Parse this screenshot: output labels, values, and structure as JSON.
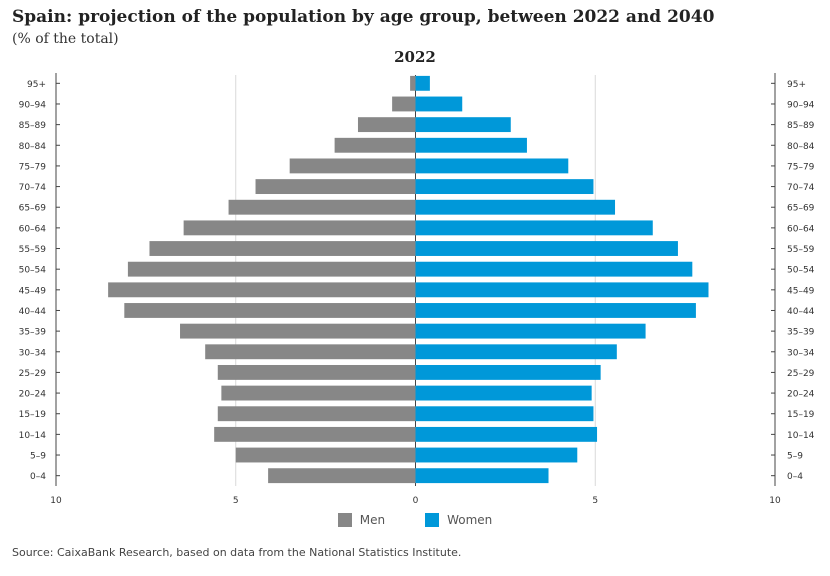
{
  "title": "Spain: projection of the population by age group, between 2022 and 2040",
  "subtitle": "(% of the total)",
  "source": "Source: CaixaBank Research, based on data from the National Statistics Institute.",
  "colors": {
    "men": "#878787",
    "women": "#0098d9",
    "grid": "#d9d9d9",
    "axis": "#444444"
  },
  "chart_data": {
    "type": "bar",
    "title": "2022",
    "orientation": "horizontal-pyramid",
    "categories": [
      "0-4",
      "5-9",
      "10-14",
      "15-19",
      "20-24",
      "25-29",
      "30-34",
      "35-39",
      "40-44",
      "45-49",
      "50-54",
      "55-59",
      "60-64",
      "65-69",
      "70-74",
      "75-79",
      "80-84",
      "85-89",
      "90-94",
      "95+"
    ],
    "category_labels": [
      "0–4",
      "5–9",
      "10–14",
      "15–19",
      "20–24",
      "25–29",
      "30–34",
      "35–39",
      "40–44",
      "45–49",
      "50–54",
      "55–59",
      "60–64",
      "65–69",
      "70–74",
      "75–79",
      "80–84",
      "85–89",
      "90–94",
      "95+"
    ],
    "series": [
      {
        "name": "Men",
        "side": "left",
        "values": [
          4.1,
          5.0,
          5.6,
          5.5,
          5.4,
          5.5,
          5.85,
          6.55,
          8.1,
          8.55,
          8.0,
          7.4,
          6.45,
          5.2,
          4.45,
          3.5,
          2.25,
          1.6,
          0.65,
          0.15
        ]
      },
      {
        "name": "Women",
        "side": "right",
        "values": [
          3.7,
          4.5,
          5.05,
          4.95,
          4.9,
          5.15,
          5.6,
          6.4,
          7.8,
          8.15,
          7.7,
          7.3,
          6.6,
          5.55,
          4.95,
          4.25,
          3.1,
          2.65,
          1.3,
          0.4
        ]
      }
    ],
    "xlim": [
      -10,
      10
    ],
    "x_ticks": [
      -10,
      -5,
      0,
      5,
      10
    ],
    "x_tick_labels": [
      "10",
      "5",
      "0",
      "5",
      "10"
    ],
    "grid": true
  }
}
